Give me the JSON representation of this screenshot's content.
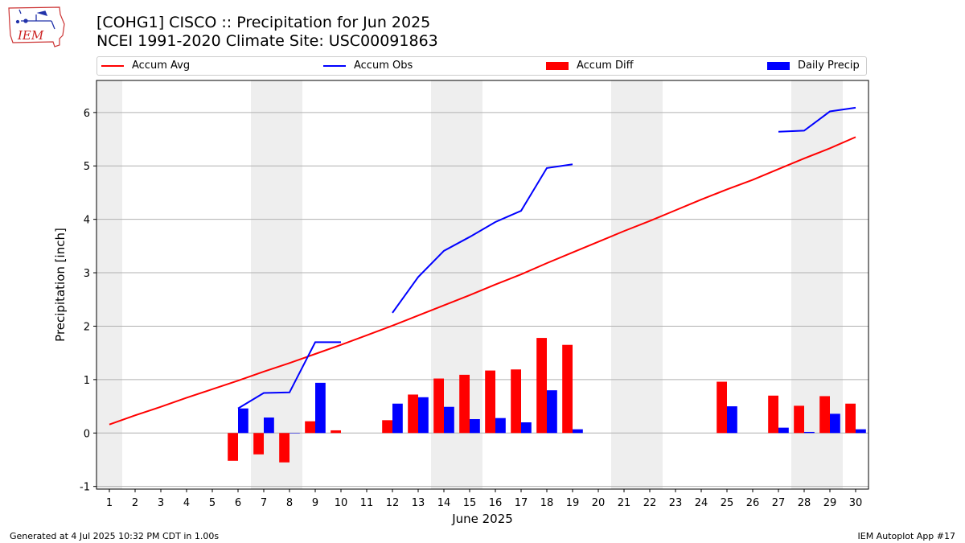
{
  "header": {
    "title_line1": "[COHG1] CISCO :: Precipitation for Jun 2025",
    "title_line2": "NCEI 1991-2020 Climate Site: USC00091863",
    "logo_text": "IEM"
  },
  "legend": {
    "accum_avg": "Accum Avg",
    "accum_obs": "Accum Obs",
    "accum_diff": "Accum Diff",
    "daily_precip": "Daily Precip"
  },
  "footer": {
    "generated": "Generated at 4 Jul 2025 10:32 PM CDT in 1.00s",
    "app": "IEM Autoplot App #17"
  },
  "chart_data": {
    "type": "bar",
    "xlabel": "June 2025",
    "ylabel": "Precipitation [inch]",
    "ylim": [
      -1.05,
      6.6
    ],
    "xlim": [
      0.5,
      30.5
    ],
    "grid": "horizontal",
    "legend_placement": "top",
    "x_ticks": [
      1,
      2,
      3,
      4,
      5,
      6,
      7,
      8,
      9,
      10,
      11,
      12,
      13,
      14,
      15,
      16,
      17,
      18,
      19,
      20,
      21,
      22,
      23,
      24,
      25,
      26,
      27,
      28,
      29,
      30
    ],
    "y_ticks": [
      -1,
      0,
      1,
      2,
      3,
      4,
      5,
      6
    ],
    "weekend_shading": [
      [
        0.5,
        1.5
      ],
      [
        6.5,
        8.5
      ],
      [
        13.5,
        15.5
      ],
      [
        20.5,
        22.5
      ],
      [
        27.5,
        29.5
      ]
    ],
    "colors": {
      "accum_avg": "#ff0000",
      "accum_obs": "#0000ff",
      "accum_diff": "#ff0000",
      "daily_precip": "#0000ff",
      "shade": "#eeeeee",
      "grid": "#b0b0b0"
    },
    "series": [
      {
        "name": "Accum Avg",
        "kind": "line",
        "x": [
          1,
          30
        ],
        "values": [
          0.16,
          5.54
        ],
        "points": [
          [
            1,
            0.16
          ],
          [
            2,
            0.33
          ],
          [
            3,
            0.49
          ],
          [
            4,
            0.66
          ],
          [
            5,
            0.82
          ],
          [
            6,
            0.98
          ],
          [
            7,
            1.15
          ],
          [
            8,
            1.31
          ],
          [
            9,
            1.48
          ],
          [
            10,
            1.65
          ],
          [
            11,
            1.83
          ],
          [
            12,
            2.01
          ],
          [
            13,
            2.2
          ],
          [
            14,
            2.39
          ],
          [
            15,
            2.58
          ],
          [
            16,
            2.78
          ],
          [
            17,
            2.97
          ],
          [
            18,
            3.18
          ],
          [
            19,
            3.38
          ],
          [
            20,
            3.58
          ],
          [
            21,
            3.78
          ],
          [
            22,
            3.97
          ],
          [
            23,
            4.17
          ],
          [
            24,
            4.37
          ],
          [
            25,
            4.56
          ],
          [
            26,
            4.74
          ],
          [
            27,
            4.94
          ],
          [
            28,
            5.14
          ],
          [
            29,
            5.33
          ],
          [
            30,
            5.54
          ]
        ]
      },
      {
        "name": "Accum Obs",
        "kind": "line",
        "segments": [
          [
            [
              6,
              0.46
            ],
            [
              7,
              0.75
            ],
            [
              8,
              0.76
            ],
            [
              9,
              1.7
            ],
            [
              10,
              1.7
            ]
          ],
          [
            [
              12,
              2.25
            ],
            [
              13,
              2.92
            ],
            [
              14,
              3.41
            ],
            [
              15,
              3.67
            ],
            [
              16,
              3.95
            ],
            [
              17,
              4.16
            ],
            [
              18,
              4.96
            ],
            [
              19,
              5.03
            ]
          ],
          [
            [
              27,
              5.64
            ],
            [
              28,
              5.66
            ],
            [
              29,
              6.02
            ],
            [
              30,
              6.09
            ]
          ]
        ]
      },
      {
        "name": "Accum Diff",
        "kind": "bar",
        "points": [
          [
            6,
            -0.52
          ],
          [
            7,
            -0.4
          ],
          [
            8,
            -0.55
          ],
          [
            9,
            0.22
          ],
          [
            10,
            0.05
          ],
          [
            12,
            0.24
          ],
          [
            13,
            0.72
          ],
          [
            14,
            1.02
          ],
          [
            15,
            1.09
          ],
          [
            16,
            1.17
          ],
          [
            17,
            1.19
          ],
          [
            18,
            1.78
          ],
          [
            19,
            1.65
          ],
          [
            25,
            0.96
          ],
          [
            27,
            0.7
          ],
          [
            28,
            0.51
          ],
          [
            29,
            0.69
          ],
          [
            30,
            0.55
          ]
        ]
      },
      {
        "name": "Daily Precip",
        "kind": "bar",
        "points": [
          [
            6,
            0.46
          ],
          [
            7,
            0.29
          ],
          [
            8,
            0.0
          ],
          [
            9,
            0.94
          ],
          [
            12,
            0.55
          ],
          [
            13,
            0.67
          ],
          [
            14,
            0.49
          ],
          [
            15,
            0.26
          ],
          [
            16,
            0.28
          ],
          [
            17,
            0.2
          ],
          [
            18,
            0.8
          ],
          [
            19,
            0.07
          ],
          [
            25,
            0.5
          ],
          [
            27,
            0.1
          ],
          [
            28,
            0.02
          ],
          [
            29,
            0.36
          ],
          [
            30,
            0.07
          ]
        ]
      }
    ]
  }
}
